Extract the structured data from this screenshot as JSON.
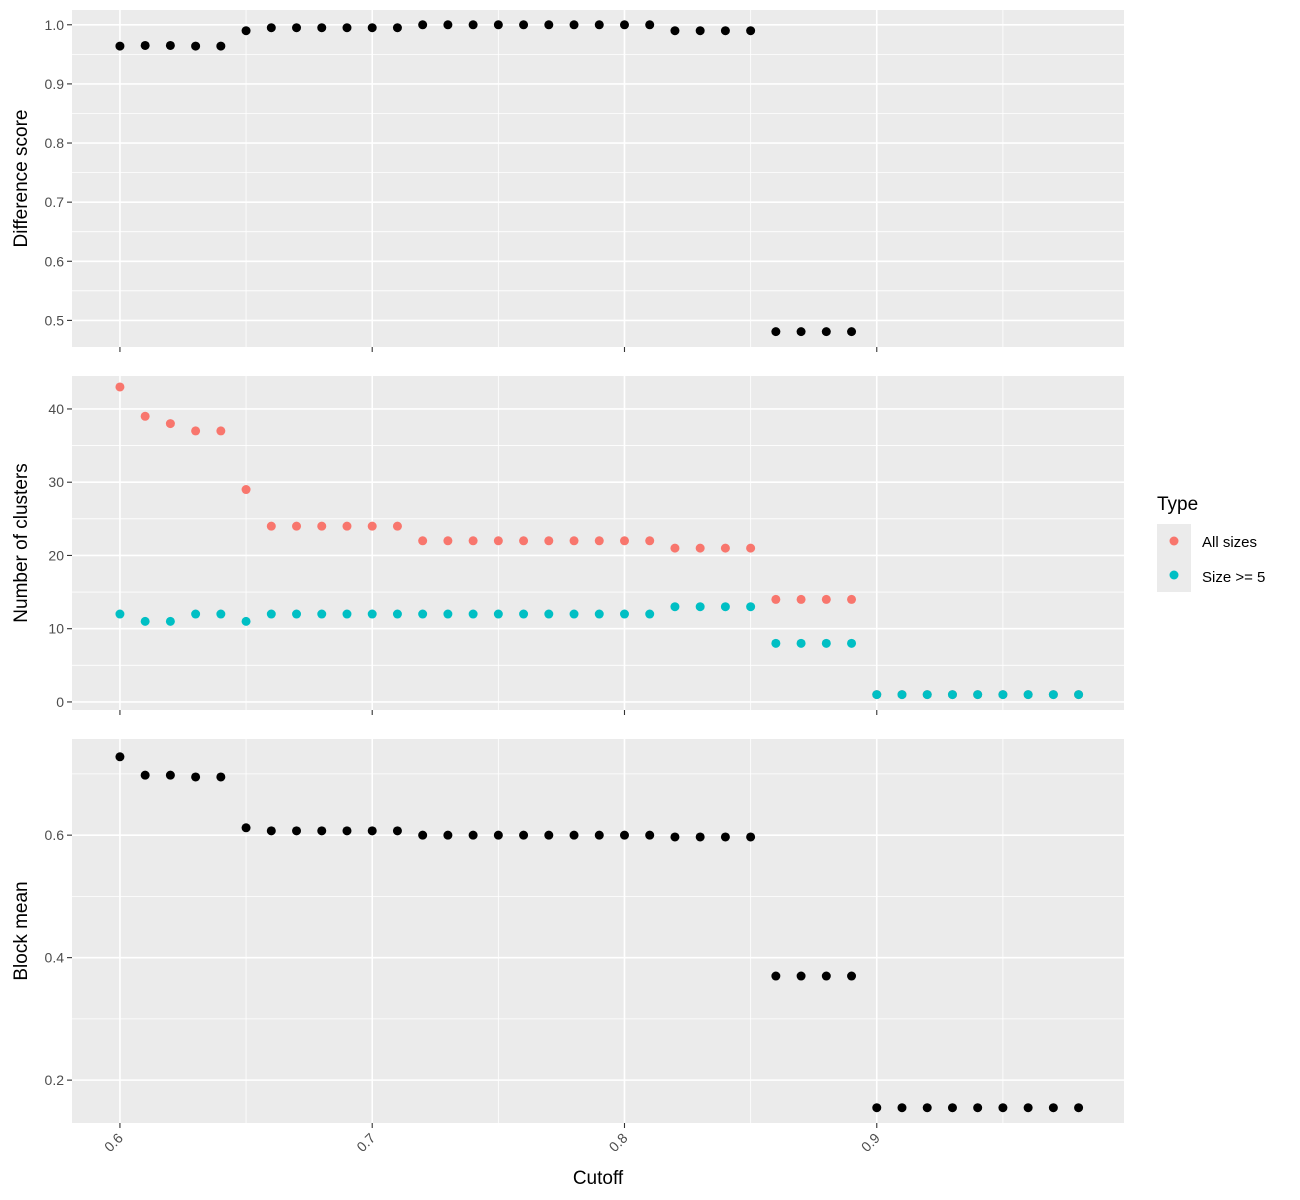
{
  "figure": {
    "xlabel": "Cutoff",
    "x_ticks": [
      0.6,
      0.7,
      0.8,
      0.9
    ],
    "x_tick_labels": [
      "0.6",
      "0.7",
      "0.8",
      "0.9"
    ],
    "xlim": [
      0.581,
      0.998
    ]
  },
  "legend": {
    "title": "Type",
    "entries": [
      {
        "label": "All sizes",
        "color": "#F8766D"
      },
      {
        "label": "Size >= 5",
        "color": "#00BFC4"
      }
    ]
  },
  "chart_data": [
    {
      "type": "scatter",
      "ylabel": "Difference score",
      "ylim": [
        0.455,
        1.025
      ],
      "y_ticks": [
        0.5,
        0.6,
        0.7,
        0.8,
        0.9,
        1.0
      ],
      "y_tick_labels": [
        "0.5",
        "0.6",
        "0.7",
        "0.8",
        "0.9",
        "1.0"
      ],
      "grid": true,
      "series": [
        {
          "color": "#000000",
          "x": [
            0.6,
            0.61,
            0.62,
            0.63,
            0.64,
            0.65,
            0.66,
            0.67,
            0.68,
            0.69,
            0.7,
            0.71,
            0.72,
            0.73,
            0.74,
            0.75,
            0.76,
            0.77,
            0.78,
            0.79,
            0.8,
            0.81,
            0.82,
            0.83,
            0.84,
            0.85,
            0.86,
            0.87,
            0.88,
            0.89
          ],
          "y": [
            0.964,
            0.965,
            0.965,
            0.964,
            0.964,
            0.99,
            0.995,
            0.995,
            0.995,
            0.995,
            0.995,
            0.995,
            1.0,
            1.0,
            1.0,
            1.0,
            1.0,
            1.0,
            1.0,
            1.0,
            1.0,
            1.0,
            0.99,
            0.99,
            0.99,
            0.99,
            0.481,
            0.481,
            0.481,
            0.481
          ]
        }
      ]
    },
    {
      "type": "scatter",
      "ylabel": "Number of clusters",
      "ylim": [
        -1.1,
        44.5
      ],
      "y_ticks": [
        0,
        10,
        20,
        30,
        40
      ],
      "y_tick_labels": [
        "0",
        "10",
        "20",
        "30",
        "40"
      ],
      "grid": true,
      "legend_position": "right",
      "series": [
        {
          "name": "All sizes",
          "color": "#F8766D",
          "x": [
            0.6,
            0.61,
            0.62,
            0.63,
            0.64,
            0.65,
            0.66,
            0.67,
            0.68,
            0.69,
            0.7,
            0.71,
            0.72,
            0.73,
            0.74,
            0.75,
            0.76,
            0.77,
            0.78,
            0.79,
            0.8,
            0.81,
            0.82,
            0.83,
            0.84,
            0.85,
            0.86,
            0.87,
            0.88,
            0.89,
            0.9,
            0.91,
            0.92,
            0.93,
            0.94,
            0.95,
            0.96,
            0.97,
            0.98
          ],
          "y": [
            43,
            39,
            38,
            37,
            37,
            29,
            24,
            24,
            24,
            24,
            24,
            24,
            22,
            22,
            22,
            22,
            22,
            22,
            22,
            22,
            22,
            22,
            21,
            21,
            21,
            21,
            14,
            14,
            14,
            14,
            1,
            1,
            1,
            1,
            1,
            1,
            1,
            1,
            1
          ]
        },
        {
          "name": "Size >= 5",
          "color": "#00BFC4",
          "x": [
            0.6,
            0.61,
            0.62,
            0.63,
            0.64,
            0.65,
            0.66,
            0.67,
            0.68,
            0.69,
            0.7,
            0.71,
            0.72,
            0.73,
            0.74,
            0.75,
            0.76,
            0.77,
            0.78,
            0.79,
            0.8,
            0.81,
            0.82,
            0.83,
            0.84,
            0.85,
            0.86,
            0.87,
            0.88,
            0.89,
            0.9,
            0.91,
            0.92,
            0.93,
            0.94,
            0.95,
            0.96,
            0.97,
            0.98
          ],
          "y": [
            12,
            11,
            11,
            12,
            12,
            11,
            12,
            12,
            12,
            12,
            12,
            12,
            12,
            12,
            12,
            12,
            12,
            12,
            12,
            12,
            12,
            12,
            13,
            13,
            13,
            13,
            8,
            8,
            8,
            8,
            1,
            1,
            1,
            1,
            1,
            1,
            1,
            1,
            1
          ]
        }
      ]
    },
    {
      "type": "scatter",
      "ylabel": "Block mean",
      "ylim": [
        0.13,
        0.757
      ],
      "y_ticks": [
        0.2,
        0.4,
        0.6
      ],
      "y_tick_labels": [
        "0.2",
        "0.4",
        "0.6"
      ],
      "grid": true,
      "series": [
        {
          "color": "#000000",
          "x": [
            0.6,
            0.61,
            0.62,
            0.63,
            0.64,
            0.65,
            0.66,
            0.67,
            0.68,
            0.69,
            0.7,
            0.71,
            0.72,
            0.73,
            0.74,
            0.75,
            0.76,
            0.77,
            0.78,
            0.79,
            0.8,
            0.81,
            0.82,
            0.83,
            0.84,
            0.85,
            0.86,
            0.87,
            0.88,
            0.89,
            0.9,
            0.91,
            0.92,
            0.93,
            0.94,
            0.95,
            0.96,
            0.97,
            0.98
          ],
          "y": [
            0.728,
            0.698,
            0.698,
            0.695,
            0.695,
            0.612,
            0.607,
            0.607,
            0.607,
            0.607,
            0.607,
            0.607,
            0.6,
            0.6,
            0.6,
            0.6,
            0.6,
            0.6,
            0.6,
            0.6,
            0.6,
            0.6,
            0.597,
            0.597,
            0.597,
            0.597,
            0.37,
            0.37,
            0.37,
            0.37,
            0.155,
            0.155,
            0.155,
            0.155,
            0.155,
            0.155,
            0.155,
            0.155,
            0.155
          ]
        }
      ]
    }
  ]
}
